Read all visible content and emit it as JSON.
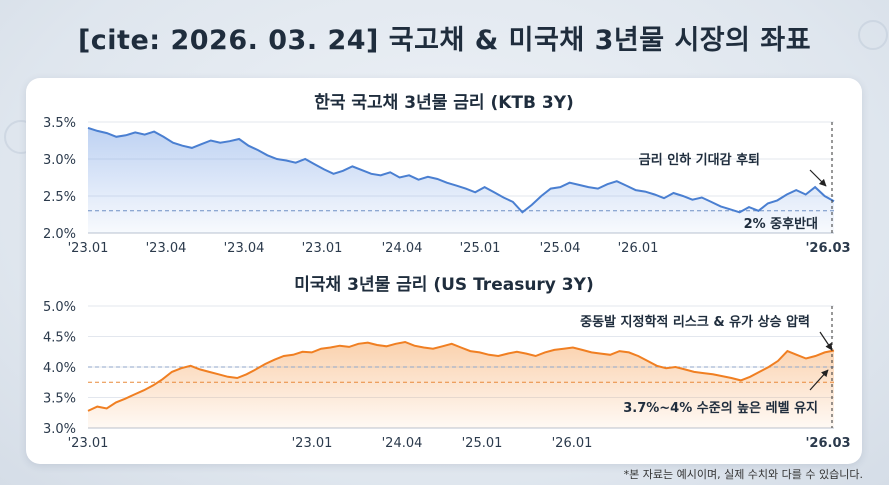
{
  "title": "[cite: 2026. 03. 24] 국고채 & 미국채 3년물 시장의 좌표",
  "footnote": "*본 자료는 예시이며, 실제 수치와 다를 수 있습니다.",
  "colors": {
    "ktb": "#4a7fd1",
    "ust": "#f07f22",
    "ktb_ref": "#6f8fc4",
    "ust_ref": "#e88a3a"
  },
  "chart_data": [
    {
      "type": "line",
      "title": "한국 국고채 3년물 금리 (KTB 3Y)",
      "x_ticks": [
        "'23.01",
        "'23.04",
        "'23.04",
        "'23.01",
        "'24.04",
        "'25.01",
        "'25.04",
        "'26.01",
        "'26.03"
      ],
      "y_ticks": [
        "3.5%",
        "3.0%",
        "2.5%",
        "2.0%"
      ],
      "ylim": [
        2.0,
        3.5
      ],
      "reference_line": 2.3,
      "annotations": [
        "금리 인하 기대감 후퇴",
        "2% 중후반대"
      ],
      "series": [
        {
          "values": [
            3.42,
            3.38,
            3.35,
            3.3,
            3.32,
            3.36,
            3.33,
            3.37,
            3.3,
            3.22,
            3.18,
            3.15,
            3.2,
            3.25,
            3.22,
            3.24,
            3.27,
            3.18,
            3.12,
            3.05,
            3.0,
            2.98,
            2.95,
            3.0,
            2.93,
            2.86,
            2.8,
            2.84,
            2.9,
            2.85,
            2.8,
            2.78,
            2.82,
            2.75,
            2.78,
            2.72,
            2.76,
            2.73,
            2.68,
            2.64,
            2.6,
            2.55,
            2.62,
            2.55,
            2.48,
            2.42,
            2.28,
            2.38,
            2.5,
            2.6,
            2.62,
            2.68,
            2.65,
            2.62,
            2.6,
            2.66,
            2.7,
            2.64,
            2.58,
            2.56,
            2.52,
            2.47,
            2.54,
            2.5,
            2.45,
            2.48,
            2.42,
            2.36,
            2.32,
            2.28,
            2.35,
            2.3,
            2.4,
            2.44,
            2.52,
            2.58,
            2.52,
            2.62,
            2.5,
            2.43
          ]
        }
      ]
    },
    {
      "type": "line",
      "title": "미국채 3년물 금리 (US Treasury 3Y)",
      "x_ticks": [
        "'23.01",
        "'23.01",
        "'24.04",
        "'25.01",
        "'26.01",
        "'26.03"
      ],
      "y_ticks": [
        "5.0%",
        "4.5%",
        "4.0%",
        "3.5%",
        "3.0%"
      ],
      "ylim": [
        3.0,
        5.0
      ],
      "reference_lines": [
        4.0,
        3.75
      ],
      "annotations": [
        "중동발 지정학적 리스크 & 유가 상승 압력",
        "3.7%~4% 수준의 높은 레벨 유지"
      ],
      "series": [
        {
          "values": [
            3.28,
            3.35,
            3.32,
            3.42,
            3.48,
            3.55,
            3.62,
            3.7,
            3.8,
            3.92,
            3.98,
            4.02,
            3.96,
            3.92,
            3.88,
            3.84,
            3.82,
            3.88,
            3.96,
            4.05,
            4.12,
            4.18,
            4.2,
            4.25,
            4.24,
            4.3,
            4.32,
            4.35,
            4.33,
            4.38,
            4.4,
            4.36,
            4.34,
            4.38,
            4.41,
            4.35,
            4.32,
            4.3,
            4.34,
            4.38,
            4.32,
            4.26,
            4.24,
            4.2,
            4.18,
            4.22,
            4.25,
            4.22,
            4.18,
            4.24,
            4.28,
            4.3,
            4.32,
            4.28,
            4.24,
            4.22,
            4.2,
            4.26,
            4.24,
            4.18,
            4.1,
            4.02,
            3.98,
            4.0,
            3.96,
            3.92,
            3.9,
            3.88,
            3.85,
            3.82,
            3.78,
            3.84,
            3.92,
            4.0,
            4.1,
            4.26,
            4.2,
            4.14,
            4.18,
            4.24,
            4.27
          ]
        }
      ]
    }
  ]
}
